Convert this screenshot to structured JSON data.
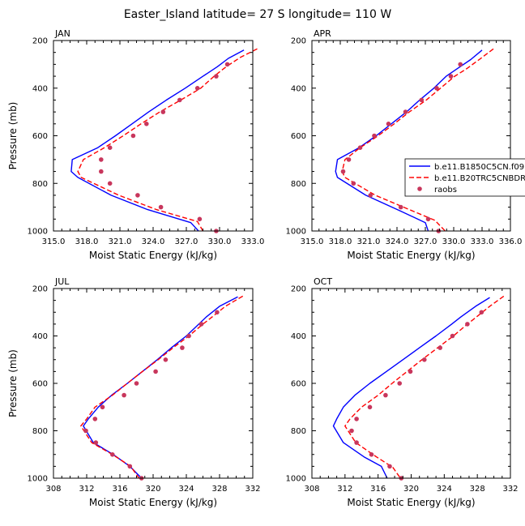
{
  "figure": {
    "title": "Easter_Island  latitude= 27 S longitude= 110 W"
  },
  "legend": {
    "entries": [
      "b.e11.B1850C5CN.f09",
      "b.e11.B20TRC5CNBDR",
      "raobs"
    ]
  },
  "chart_data": [
    {
      "type": "line",
      "panel": "JAN",
      "xlabel": "Moist Static Energy (kJ/kg)",
      "ylabel": "Pressure (mb)",
      "xlim": [
        315.0,
        333.0
      ],
      "ylim": [
        200,
        1000
      ],
      "y_reversed": true,
      "xticks": [
        315.0,
        318.0,
        321.0,
        324.0,
        327.0,
        330.0,
        333.0
      ],
      "xtick_labels": [
        "315.0",
        "318.0",
        "321.0",
        "324.0",
        "327.0",
        "330.0",
        "333.0"
      ],
      "yticks": [
        200,
        400,
        600,
        800,
        1000
      ],
      "ytick_labels": [
        "200",
        "400",
        "600",
        "800",
        "1000"
      ],
      "series": [
        {
          "name": "b.e11.B1850C5CN.f09",
          "color": "#0000ff",
          "style": "solid",
          "points": [
            [
              332.2,
              240
            ],
            [
              330.8,
              275
            ],
            [
              329.8,
              310
            ],
            [
              328.5,
              350
            ],
            [
              326.9,
              400
            ],
            [
              325.2,
              450
            ],
            [
              323.6,
              500
            ],
            [
              322.1,
              550
            ],
            [
              320.6,
              600
            ],
            [
              319.0,
              650
            ],
            [
              316.7,
              700
            ],
            [
              316.6,
              750
            ],
            [
              317.2,
              775
            ],
            [
              320.2,
              850
            ],
            [
              323.5,
              910
            ],
            [
              327.4,
              965
            ],
            [
              328.1,
              1000
            ]
          ]
        },
        {
          "name": "b.e11.B20TRC5CNBDR",
          "color": "#ff0000",
          "style": "dashed",
          "points": [
            [
              333.4,
              235
            ],
            [
              331.9,
              270
            ],
            [
              330.6,
              310
            ],
            [
              329.5,
              350
            ],
            [
              328.3,
              400
            ],
            [
              326.5,
              450
            ],
            [
              324.6,
              500
            ],
            [
              322.9,
              550
            ],
            [
              321.3,
              600
            ],
            [
              319.6,
              650
            ],
            [
              317.7,
              700
            ],
            [
              317.2,
              750
            ],
            [
              317.5,
              775
            ],
            [
              320.9,
              850
            ],
            [
              324.3,
              910
            ],
            [
              328.0,
              960
            ],
            [
              328.5,
              1000
            ]
          ]
        },
        {
          "name": "raobs",
          "color": "#c8365c",
          "style": "markers",
          "points": [
            [
              330.7,
              300
            ],
            [
              329.7,
              350
            ],
            [
              328.0,
              400
            ],
            [
              326.4,
              450
            ],
            [
              324.9,
              500
            ],
            [
              323.4,
              550
            ],
            [
              322.2,
              600
            ],
            [
              320.1,
              650
            ],
            [
              319.3,
              700
            ],
            [
              319.3,
              750
            ],
            [
              320.1,
              800
            ],
            [
              322.6,
              850
            ],
            [
              324.7,
              900
            ],
            [
              328.2,
              950
            ],
            [
              329.7,
              1000
            ]
          ]
        }
      ]
    },
    {
      "type": "line",
      "panel": "APR",
      "xlabel": "Moist Static Energy (kJ/kg)",
      "ylabel": "",
      "xlim": [
        315.0,
        336.0
      ],
      "ylim": [
        200,
        1000
      ],
      "y_reversed": true,
      "xticks": [
        315.0,
        318.0,
        321.0,
        324.0,
        327.0,
        330.0,
        333.0,
        336.0
      ],
      "xtick_labels": [
        "315.0",
        "318.0",
        "321.0",
        "324.0",
        "327.0",
        "330.0",
        "333.0",
        "336.0"
      ],
      "yticks": [
        200,
        400,
        600,
        800,
        1000
      ],
      "ytick_labels": [
        "200",
        "400",
        "600",
        "800",
        "1000"
      ],
      "series": [
        {
          "name": "b.e11.B1850C5CN.f09",
          "color": "#0000ff",
          "style": "solid",
          "points": [
            [
              333.0,
              240
            ],
            [
              331.8,
              280
            ],
            [
              330.3,
              320
            ],
            [
              329.2,
              350
            ],
            [
              327.9,
              400
            ],
            [
              326.4,
              450
            ],
            [
              325.0,
              500
            ],
            [
              323.4,
              550
            ],
            [
              321.8,
              600
            ],
            [
              320.0,
              650
            ],
            [
              317.7,
              700
            ],
            [
              317.5,
              750
            ],
            [
              317.7,
              775
            ],
            [
              320.7,
              850
            ],
            [
              324.3,
              915
            ],
            [
              327.0,
              965
            ],
            [
              327.3,
              1000
            ]
          ]
        },
        {
          "name": "b.e11.B20TRC5CNBDR",
          "color": "#ff0000",
          "style": "dashed",
          "points": [
            [
              334.2,
              235
            ],
            [
              332.7,
              280
            ],
            [
              331.3,
              320
            ],
            [
              330.1,
              350
            ],
            [
              328.6,
              400
            ],
            [
              327.1,
              450
            ],
            [
              325.3,
              500
            ],
            [
              323.7,
              550
            ],
            [
              322.0,
              600
            ],
            [
              320.1,
              650
            ],
            [
              318.5,
              700
            ],
            [
              318.2,
              750
            ],
            [
              318.5,
              775
            ],
            [
              321.7,
              850
            ],
            [
              325.3,
              910
            ],
            [
              328.0,
              955
            ],
            [
              329.1,
              1000
            ]
          ]
        },
        {
          "name": "raobs",
          "color": "#c8365c",
          "style": "markers",
          "points": [
            [
              330.7,
              300
            ],
            [
              329.7,
              350
            ],
            [
              328.2,
              400
            ],
            [
              326.6,
              450
            ],
            [
              324.9,
              500
            ],
            [
              323.1,
              550
            ],
            [
              321.6,
              600
            ],
            [
              320.1,
              650
            ],
            [
              318.9,
              700
            ],
            [
              318.3,
              750
            ],
            [
              319.4,
              800
            ],
            [
              321.2,
              850
            ],
            [
              324.4,
              900
            ],
            [
              327.3,
              950
            ],
            [
              328.4,
              1000
            ]
          ]
        }
      ]
    },
    {
      "type": "line",
      "panel": "JUL",
      "xlabel": "Moist Static Energy (kJ/kg)",
      "ylabel": "Pressure (mb)",
      "xlim": [
        308,
        332
      ],
      "ylim": [
        200,
        1000
      ],
      "y_reversed": true,
      "xticks": [
        308,
        312,
        316,
        320,
        324,
        328,
        332
      ],
      "xtick_labels": [
        "308",
        "312",
        "316",
        "320",
        "324",
        "328",
        "332"
      ],
      "yticks": [
        200,
        400,
        600,
        800,
        1000
      ],
      "ytick_labels": [
        "200",
        "400",
        "600",
        "800",
        "1000"
      ],
      "series": [
        {
          "name": "b.e11.B1850C5CN.f09",
          "color": "#0000ff",
          "style": "solid",
          "points": [
            [
              330.2,
              235
            ],
            [
              328.0,
              275
            ],
            [
              326.4,
              320
            ],
            [
              325.5,
              350
            ],
            [
              324.0,
              400
            ],
            [
              322.2,
              450
            ],
            [
              320.5,
              500
            ],
            [
              318.7,
              550
            ],
            [
              316.9,
              600
            ],
            [
              315.0,
              650
            ],
            [
              313.4,
              700
            ],
            [
              312.2,
              750
            ],
            [
              311.6,
              780
            ],
            [
              312.8,
              850
            ],
            [
              315.2,
              900
            ],
            [
              317.2,
              950
            ],
            [
              318.6,
              1000
            ]
          ]
        },
        {
          "name": "b.e11.B20TRC5CNBDR",
          "color": "#ff0000",
          "style": "dashed",
          "points": [
            [
              330.8,
              232
            ],
            [
              328.7,
              275
            ],
            [
              327.1,
              320
            ],
            [
              326.0,
              350
            ],
            [
              324.3,
              400
            ],
            [
              322.4,
              450
            ],
            [
              320.6,
              500
            ],
            [
              318.7,
              550
            ],
            [
              316.9,
              600
            ],
            [
              315.1,
              650
            ],
            [
              313.0,
              700
            ],
            [
              312.0,
              750
            ],
            [
              311.3,
              780
            ],
            [
              312.6,
              850
            ],
            [
              315.1,
              900
            ],
            [
              317.3,
              950
            ],
            [
              318.3,
              1000
            ]
          ]
        },
        {
          "name": "raobs",
          "color": "#c8365c",
          "style": "markers",
          "points": [
            [
              327.7,
              300
            ],
            [
              325.8,
              350
            ],
            [
              324.3,
              400
            ],
            [
              323.5,
              450
            ],
            [
              321.5,
              500
            ],
            [
              320.3,
              550
            ],
            [
              318.0,
              600
            ],
            [
              316.5,
              650
            ],
            [
              313.9,
              700
            ],
            [
              313.0,
              750
            ],
            [
              311.9,
              800
            ],
            [
              313.1,
              850
            ],
            [
              315.1,
              900
            ],
            [
              317.2,
              950
            ],
            [
              318.6,
              1000
            ]
          ]
        }
      ]
    },
    {
      "type": "line",
      "panel": "OCT",
      "xlabel": "Moist Static Energy (kJ/kg)",
      "ylabel": "",
      "xlim": [
        308,
        332
      ],
      "ylim": [
        200,
        1000
      ],
      "y_reversed": true,
      "xticks": [
        308,
        312,
        316,
        320,
        324,
        328,
        332
      ],
      "xtick_labels": [
        "308",
        "312",
        "316",
        "320",
        "324",
        "328",
        "332"
      ],
      "yticks": [
        200,
        400,
        600,
        800,
        1000
      ],
      "ytick_labels": [
        "200",
        "400",
        "600",
        "800",
        "1000"
      ],
      "series": [
        {
          "name": "b.e11.B1850C5CN.f09",
          "color": "#0000ff",
          "style": "solid",
          "points": [
            [
              329.5,
              238
            ],
            [
              327.8,
              275
            ],
            [
              326.0,
              320
            ],
            [
              324.9,
              350
            ],
            [
              323.0,
              400
            ],
            [
              321.0,
              450
            ],
            [
              319.0,
              500
            ],
            [
              317.0,
              550
            ],
            [
              315.0,
              600
            ],
            [
              313.2,
              650
            ],
            [
              311.8,
              700
            ],
            [
              311.0,
              750
            ],
            [
              310.6,
              780
            ],
            [
              311.8,
              850
            ],
            [
              314.3,
              910
            ],
            [
              316.4,
              950
            ],
            [
              317.1,
              1000
            ]
          ]
        },
        {
          "name": "b.e11.B20TRC5CNBDR",
          "color": "#ff0000",
          "style": "dashed",
          "points": [
            [
              331.2,
              232
            ],
            [
              329.5,
              275
            ],
            [
              327.9,
              320
            ],
            [
              326.8,
              350
            ],
            [
              325.1,
              400
            ],
            [
              323.2,
              450
            ],
            [
              321.3,
              500
            ],
            [
              319.5,
              550
            ],
            [
              317.7,
              600
            ],
            [
              316.0,
              650
            ],
            [
              314.0,
              700
            ],
            [
              312.6,
              750
            ],
            [
              312.0,
              780
            ],
            [
              313.3,
              850
            ],
            [
              315.8,
              910
            ],
            [
              317.8,
              955
            ],
            [
              318.7,
              1000
            ]
          ]
        },
        {
          "name": "raobs",
          "color": "#c8365c",
          "style": "markers",
          "points": [
            [
              328.5,
              300
            ],
            [
              326.8,
              350
            ],
            [
              325.0,
              400
            ],
            [
              323.5,
              450
            ],
            [
              321.6,
              500
            ],
            [
              319.9,
              550
            ],
            [
              318.6,
              600
            ],
            [
              316.9,
              650
            ],
            [
              315.0,
              700
            ],
            [
              313.4,
              750
            ],
            [
              312.8,
              800
            ],
            [
              313.4,
              850
            ],
            [
              315.2,
              900
            ],
            [
              317.4,
              950
            ],
            [
              318.8,
              1000
            ]
          ]
        }
      ]
    }
  ]
}
